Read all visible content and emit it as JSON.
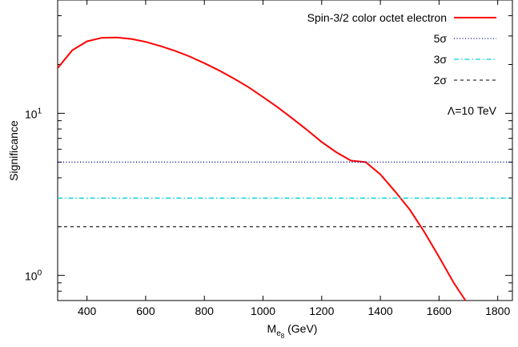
{
  "chart_data": {
    "type": "line",
    "y_scale": "log",
    "xlabel": {
      "main": "M",
      "sub1": "e",
      "sub2": "8",
      "unit": " (GeV)"
    },
    "ylabel": "Significance",
    "xlim": [
      300,
      1850
    ],
    "ylim": [
      0.7,
      50
    ],
    "x_ticks": [
      400,
      600,
      800,
      1000,
      1200,
      1400,
      1600,
      1800
    ],
    "y_ticks": [
      {
        "value": 1,
        "base": "10",
        "exp": "0"
      },
      {
        "value": 10,
        "base": "10",
        "exp": "1"
      }
    ],
    "grid": false,
    "legend_position": "top-right",
    "annotation": "Λ=10 TeV",
    "series": [
      {
        "name": "Spin-3/2 color octet electron",
        "color": "#ff0000",
        "dash": "",
        "x": [
          300,
          350,
          400,
          450,
          500,
          550,
          600,
          650,
          700,
          750,
          800,
          850,
          900,
          950,
          1000,
          1050,
          1100,
          1150,
          1200,
          1250,
          1300,
          1350,
          1400,
          1450,
          1500,
          1550,
          1600,
          1650,
          1690
        ],
        "y": [
          19,
          24.5,
          27.8,
          29.2,
          29.4,
          28.8,
          27.6,
          26.0,
          24.3,
          22.4,
          20.4,
          18.4,
          16.4,
          14.5,
          12.6,
          10.9,
          9.3,
          7.9,
          6.65,
          5.75,
          5.1,
          5.0,
          4.2,
          3.3,
          2.55,
          1.85,
          1.3,
          0.9,
          0.7
        ]
      },
      {
        "name": "5σ",
        "color": "#00008b",
        "dash": "1,2.5",
        "x": [
          300,
          1850
        ],
        "y": [
          5,
          5
        ]
      },
      {
        "name": "3σ",
        "color": "#00d5d5",
        "dash": "6,3,1.5,3",
        "x": [
          300,
          1850
        ],
        "y": [
          3,
          3
        ]
      },
      {
        "name": "2σ",
        "color": "#333333",
        "dash": "4,4",
        "x": [
          300,
          1850
        ],
        "y": [
          2,
          2
        ]
      }
    ]
  }
}
